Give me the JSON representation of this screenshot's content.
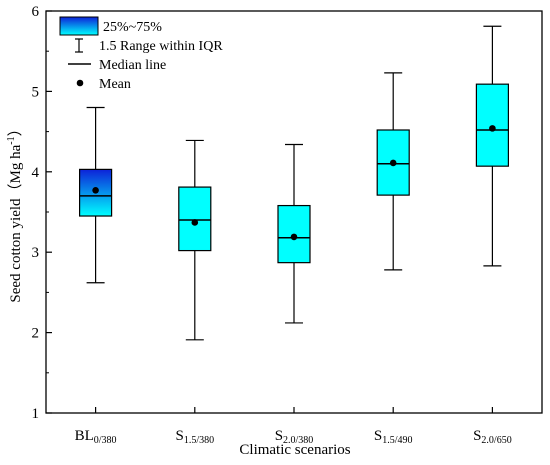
{
  "chart_data": {
    "type": "box",
    "title": "",
    "xlabel": "Climatic scenarios",
    "ylabel": {
      "text": "Seed cotton yield（Mg ha",
      "superscript": "-1",
      "close": "）"
    },
    "ylim": [
      1,
      6
    ],
    "yticks": [
      1,
      2,
      3,
      4,
      5,
      6
    ],
    "grid": false,
    "legend_position": "top-left",
    "categories": [
      {
        "main": "BL",
        "sub": "0/380"
      },
      {
        "main": "S",
        "sub": "1.5/380"
      },
      {
        "main": "S",
        "sub": "2.0/380"
      },
      {
        "main": "S",
        "sub": "1.5/490"
      },
      {
        "main": "S",
        "sub": "2.0/650"
      }
    ],
    "boxes": [
      {
        "whisker_low": 2.62,
        "q1": 3.45,
        "median": 3.7,
        "q3": 4.03,
        "whisker_high": 4.8,
        "mean": 3.77,
        "fill": "gradient-blue"
      },
      {
        "whisker_low": 1.91,
        "q1": 3.02,
        "median": 3.4,
        "q3": 3.81,
        "whisker_high": 4.39,
        "mean": 3.37,
        "fill": "cyan"
      },
      {
        "whisker_low": 2.12,
        "q1": 2.87,
        "median": 3.18,
        "q3": 3.58,
        "whisker_high": 4.34,
        "mean": 3.19,
        "fill": "cyan"
      },
      {
        "whisker_low": 2.78,
        "q1": 3.71,
        "median": 4.1,
        "q3": 4.52,
        "whisker_high": 5.23,
        "mean": 4.11,
        "fill": "cyan"
      },
      {
        "whisker_low": 2.83,
        "q1": 4.07,
        "median": 4.52,
        "q3": 5.09,
        "whisker_high": 5.81,
        "mean": 4.54,
        "fill": "cyan"
      }
    ],
    "legend": {
      "box": "25%~75%",
      "range": "1.5 Range within IQR",
      "median": "Median line",
      "mean": "Mean"
    },
    "colors": {
      "cyan": "#00ffff",
      "gradient_top": "#0d22d8",
      "gradient_bottom": "#00ffff",
      "stroke": "#000000"
    }
  }
}
